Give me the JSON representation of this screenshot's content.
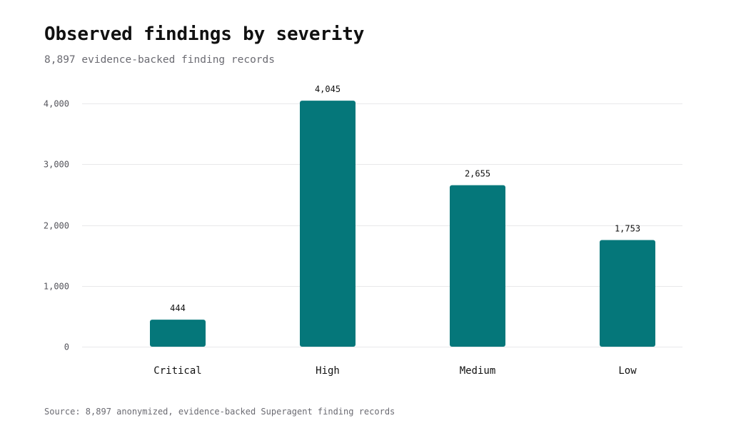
{
  "title": "Observed findings by severity",
  "subtitle": "8,897 evidence-backed finding records",
  "source": "Source: 8,897 anonymized, evidence-backed Superagent finding records",
  "colors": {
    "bar": "#05777a",
    "grid": "#e8e8ea"
  },
  "chart_data": {
    "type": "bar",
    "title": "Observed findings by severity",
    "subtitle": "8,897 evidence-backed finding records",
    "xlabel": "",
    "ylabel": "",
    "categories": [
      "Critical",
      "High",
      "Medium",
      "Low"
    ],
    "values": [
      444,
      4045,
      2655,
      1753
    ],
    "value_labels": [
      "444",
      "4,045",
      "2,655",
      "1,753"
    ],
    "ylim": [
      0,
      4000
    ],
    "yticks": [
      0,
      1000,
      2000,
      3000,
      4000
    ],
    "ytick_labels": [
      "0",
      "1,000",
      "2,000",
      "3,000",
      "4,000"
    ],
    "grid": true,
    "legend": "none"
  }
}
